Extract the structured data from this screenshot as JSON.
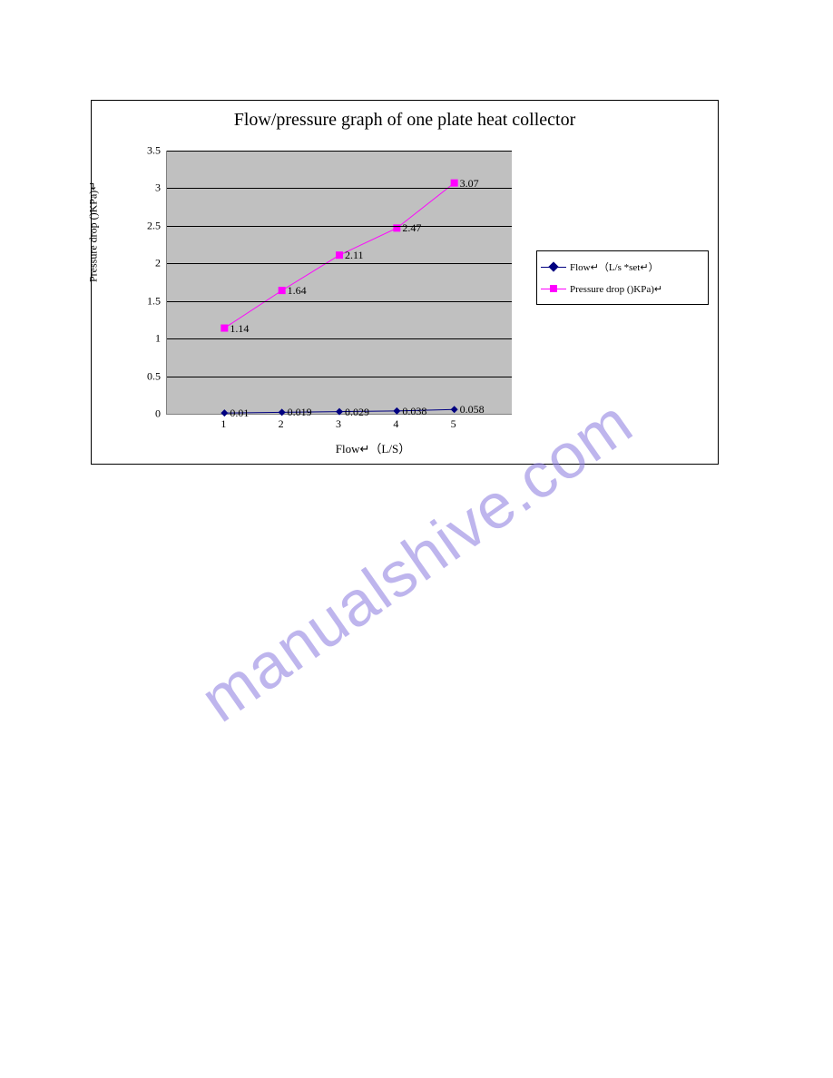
{
  "chart": {
    "type": "line",
    "title": "Flow/pressure graph of one plate heat collector",
    "title_fontsize": 20,
    "title_font": "Times New Roman",
    "x_axis_label": "Flow↵（L/S）",
    "y_axis_label": "Pressure drop ()KPa)↵",
    "background_color": "#ffffff",
    "plot_background_color": "#c0c0c0",
    "grid_color": "#000000",
    "axis_color": "#808080",
    "ylim": [
      0,
      3.5
    ],
    "ytick_step": 0.5,
    "yticks": [
      "0",
      "0.5",
      "1",
      "1.5",
      "2",
      "2.5",
      "3",
      "3.5"
    ],
    "xticks": [
      "1",
      "2",
      "3",
      "4",
      "5"
    ],
    "x_positions": [
      1,
      2,
      3,
      4,
      5
    ],
    "series": [
      {
        "name": "Flow↵（L/s *set↵）",
        "color": "#000080",
        "marker": "diamond",
        "marker_color": "#000080",
        "line_width": 1,
        "values": [
          0.01,
          0.019,
          0.029,
          0.038,
          0.058
        ],
        "data_labels": [
          "0.01",
          "0.019",
          "0.029",
          "0.038",
          "0.058"
        ]
      },
      {
        "name": "Pressure drop ()KPa)↵",
        "color": "#ff00ff",
        "marker": "square",
        "marker_color": "#ff00ff",
        "line_width": 1,
        "values": [
          1.14,
          1.64,
          2.11,
          2.47,
          3.07
        ],
        "data_labels": [
          "1.14",
          "1.64",
          "2.11",
          "2.47",
          "3.07"
        ]
      }
    ],
    "legend": {
      "position": "right",
      "border_color": "#000000",
      "background": "#ffffff",
      "fontsize": 11
    },
    "tick_fontsize": 12,
    "label_fontsize": 13
  },
  "watermark": {
    "text": "manualshive.com",
    "color": "#8a7ae0",
    "opacity": 0.55,
    "fontsize": 70,
    "rotation_deg": -35
  }
}
